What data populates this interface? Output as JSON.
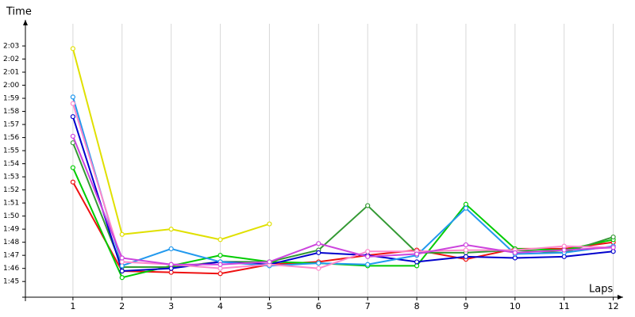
{
  "chart_data": {
    "type": "line",
    "x_label": "Laps",
    "y_label": "Time",
    "x": [
      1,
      2,
      3,
      4,
      5,
      6,
      7,
      8,
      9,
      10,
      11,
      12
    ],
    "xlim": [
      0,
      12.2
    ],
    "xticks": [
      1,
      2,
      3,
      4,
      5,
      6,
      7,
      8,
      9,
      10,
      11,
      12
    ],
    "ylim": [
      103.8,
      125
    ],
    "yticks": [
      {
        "value": 105,
        "label": "1:45"
      },
      {
        "value": 106,
        "label": "1:46"
      },
      {
        "value": 107,
        "label": "1:47"
      },
      {
        "value": 108,
        "label": "1:48"
      },
      {
        "value": 109,
        "label": "1:49"
      },
      {
        "value": 110,
        "label": "1:50"
      },
      {
        "value": 111,
        "label": "1:51"
      },
      {
        "value": 112,
        "label": "1:52"
      },
      {
        "value": 113,
        "label": "1:53"
      },
      {
        "value": 114,
        "label": "1:54"
      },
      {
        "value": 115,
        "label": "1:55"
      },
      {
        "value": 116,
        "label": "1:56"
      },
      {
        "value": 117,
        "label": "1:57"
      },
      {
        "value": 118,
        "label": "1:58"
      },
      {
        "value": 119,
        "label": "1:59"
      },
      {
        "value": 120,
        "label": "2:00"
      },
      {
        "value": 121,
        "label": "2:01"
      },
      {
        "value": 122,
        "label": "2:02"
      },
      {
        "value": 123,
        "label": "2:03"
      }
    ],
    "grid": true,
    "series": [
      {
        "color": "#e0e000",
        "values": [
          122.8,
          108.6,
          109.0,
          108.2,
          109.4,
          null,
          null,
          null,
          null,
          null,
          null,
          null
        ]
      },
      {
        "color": "#ee1111",
        "values": [
          112.6,
          105.8,
          105.7,
          105.6,
          106.3,
          106.5,
          107.0,
          107.4,
          106.7,
          107.5,
          107.5,
          108.0
        ]
      },
      {
        "color": "#00cc00",
        "values": [
          113.7,
          105.3,
          106.2,
          107.0,
          106.5,
          106.4,
          106.2,
          106.2,
          110.9,
          107.5,
          107.4,
          108.2
        ]
      },
      {
        "color": "#339933",
        "values": [
          115.6,
          106.1,
          106.1,
          106.5,
          106.5,
          107.4,
          110.8,
          107.2,
          107.2,
          107.4,
          107.2,
          108.4
        ]
      },
      {
        "color": "#0000cc",
        "values": [
          117.6,
          105.8,
          106.0,
          106.5,
          106.3,
          107.2,
          107.0,
          106.5,
          106.9,
          106.8,
          106.9,
          107.3
        ]
      },
      {
        "color": "#2299ee",
        "values": [
          119.1,
          106.2,
          107.5,
          106.5,
          106.2,
          106.4,
          106.3,
          107.0,
          110.6,
          107.1,
          107.2,
          107.7
        ]
      },
      {
        "color": "#ff88cc",
        "values": [
          118.6,
          106.5,
          106.3,
          106.0,
          106.3,
          106.0,
          107.3,
          107.3,
          107.4,
          107.4,
          107.7,
          107.6
        ]
      },
      {
        "color": "#cc44dd",
        "values": [
          116.1,
          106.8,
          106.3,
          106.3,
          106.5,
          107.9,
          106.9,
          107.1,
          107.8,
          107.2,
          107.4,
          107.6
        ]
      }
    ]
  }
}
